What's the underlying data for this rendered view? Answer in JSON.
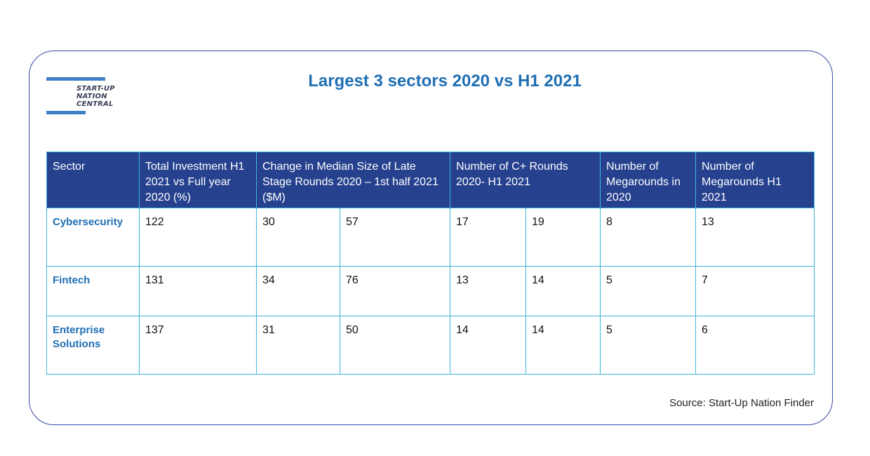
{
  "logo": {
    "line1": "START-UP",
    "line2": "NATION",
    "line3": "CENTRAL"
  },
  "chart_data": {
    "type": "table",
    "title": "Largest 3 sectors 2020 vs H1 2021",
    "headers": [
      "Sector",
      "Total Investment H1 2021 vs Full year 2020 (%)",
      "Change in Median Size of Late Stage Rounds 2020 – 1st half 2021 ($M)",
      "Number of C+ Rounds 2020- H1 2021",
      "Number of Megarounds in 2020",
      "Number of Megarounds H1 2021"
    ],
    "rows": [
      {
        "sector": "Cybersecurity",
        "values": [
          "122",
          "30",
          "57",
          "17",
          "19",
          "8",
          "13"
        ]
      },
      {
        "sector": "Fintech",
        "values": [
          "131",
          "34",
          "76",
          "13",
          "14",
          "5",
          "7"
        ]
      },
      {
        "sector": "Enterprise Solutions",
        "values": [
          "137",
          "31",
          "50",
          "14",
          "14",
          "5",
          "6"
        ]
      }
    ],
    "source": "Source: Start-Up Nation Finder"
  }
}
